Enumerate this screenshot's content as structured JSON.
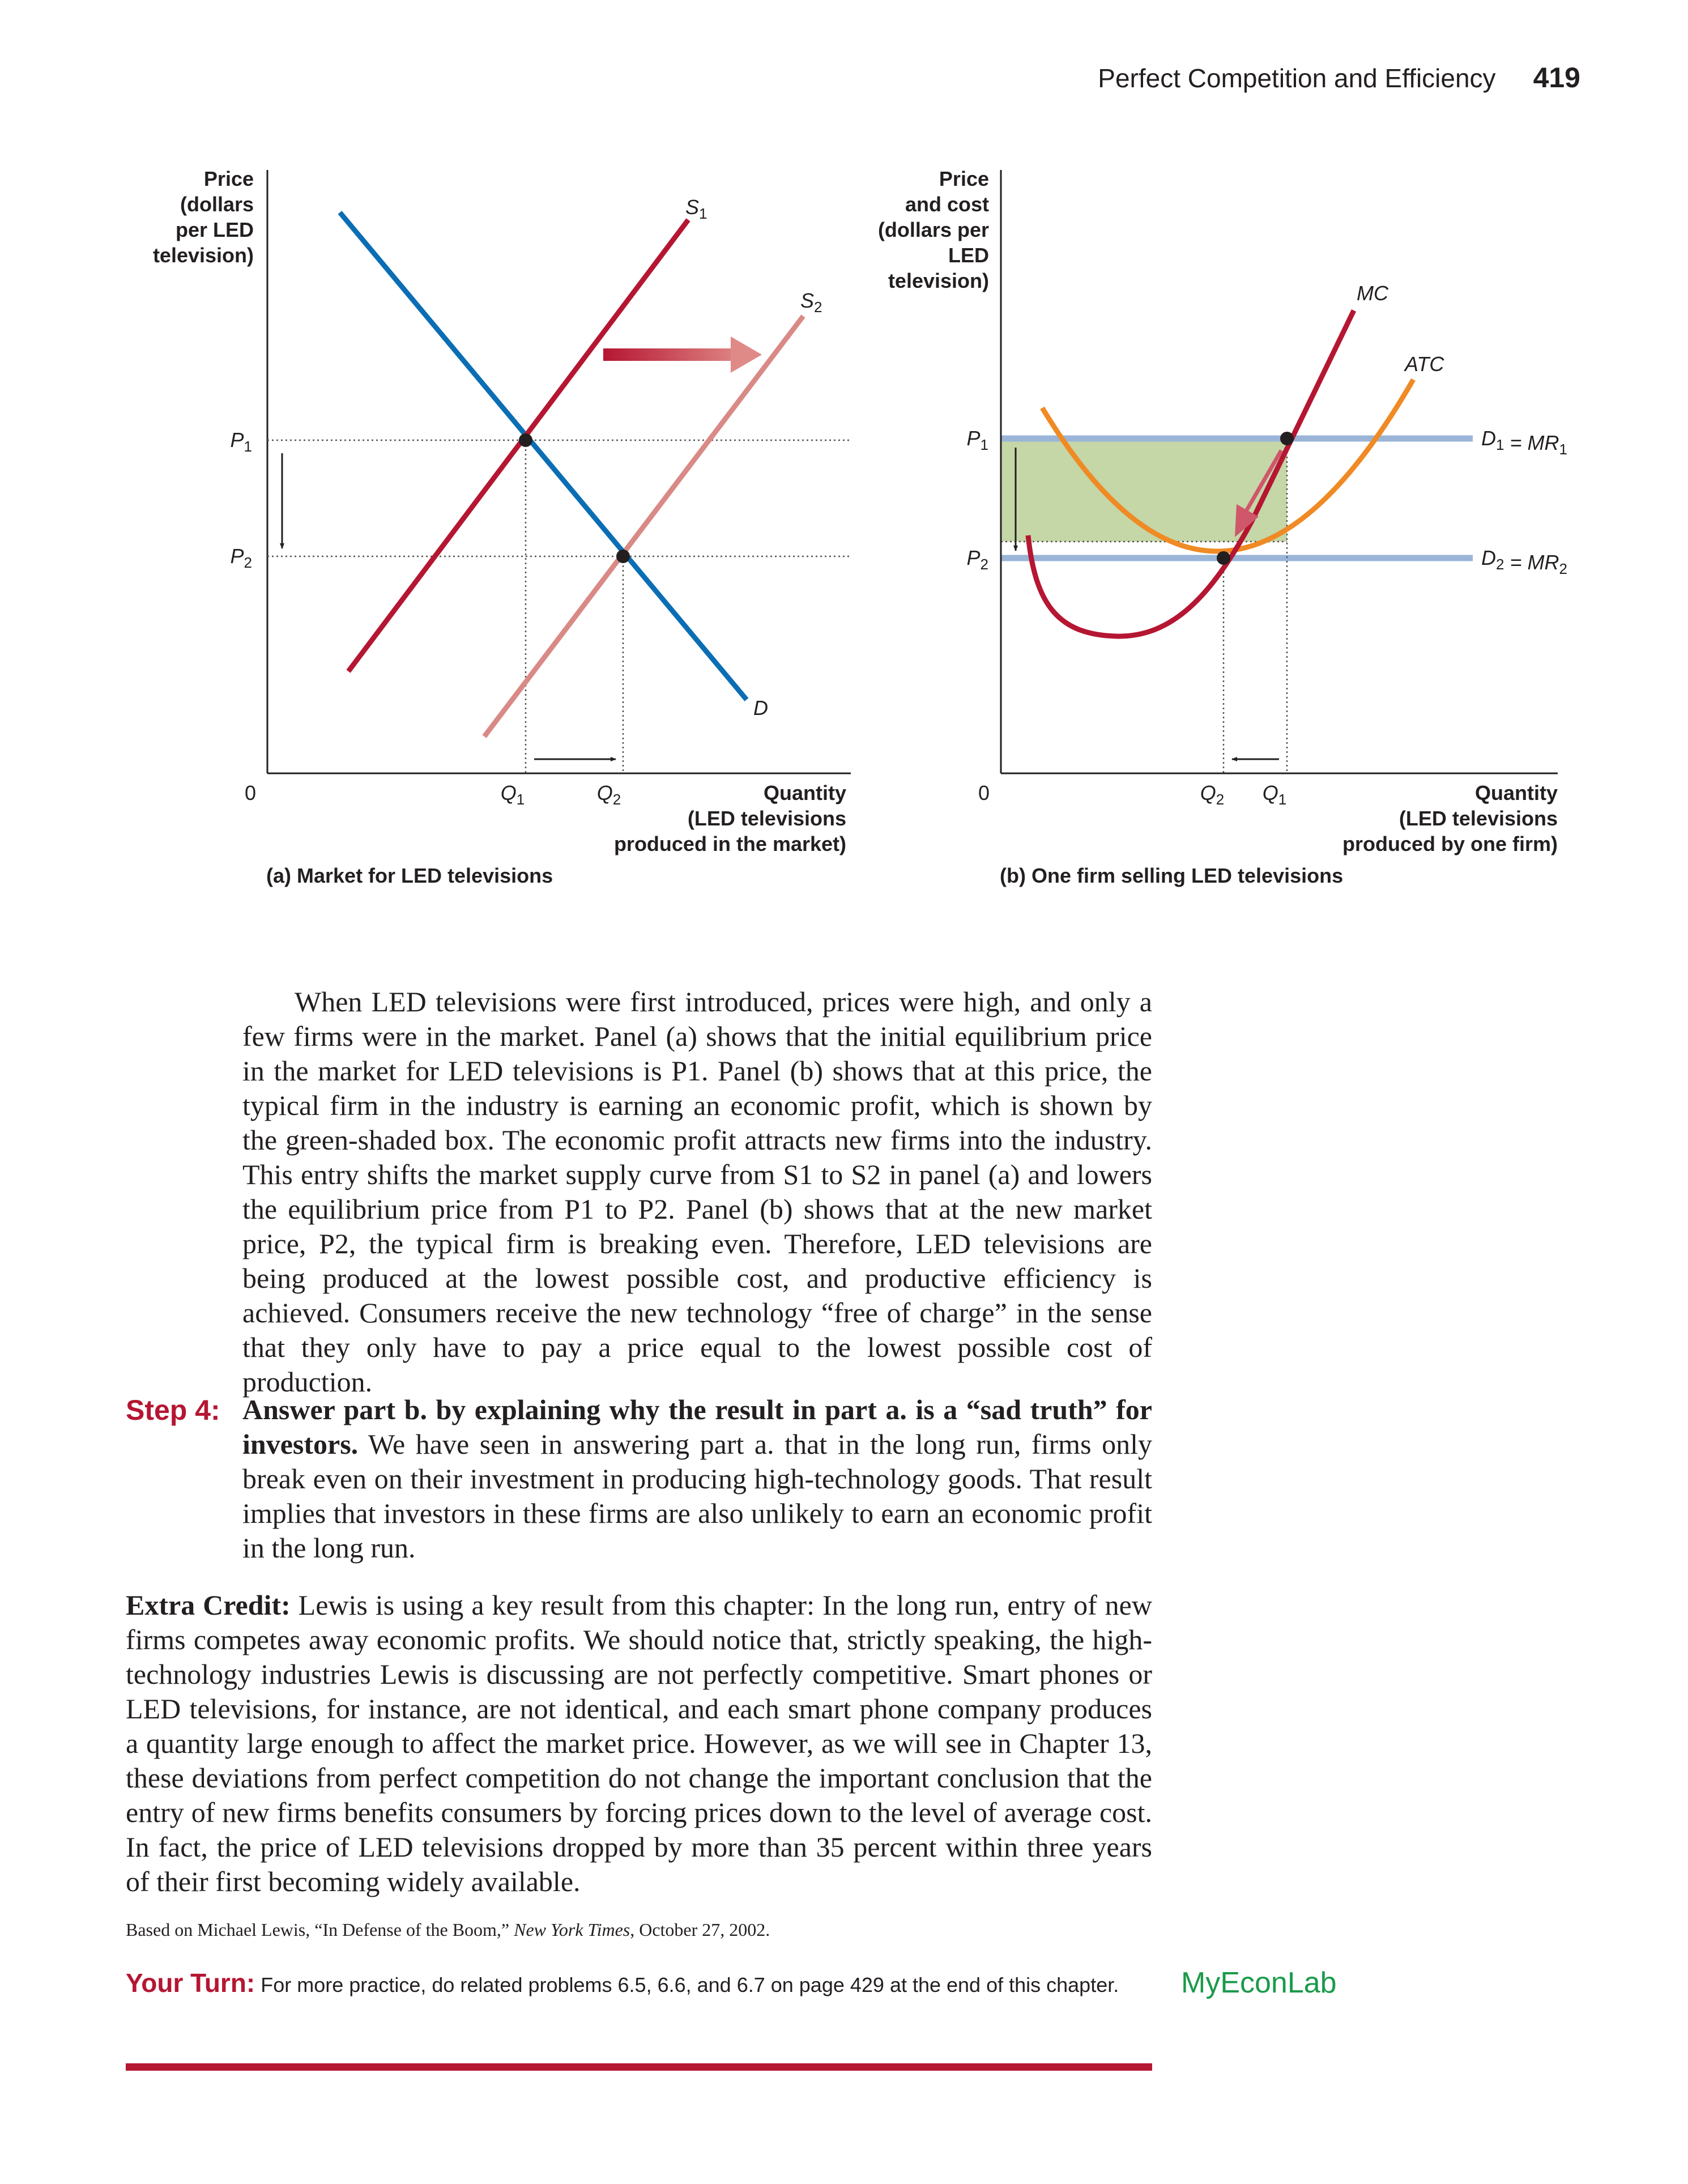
{
  "running_head": {
    "title": "Perfect Competition and Efficiency",
    "page_number": "419"
  },
  "colors": {
    "demand": "#0b6eb4",
    "supply1": "#b51632",
    "supply2": "#d98a86",
    "atc": "#f08a24",
    "demand_mr": "#9ab5d8",
    "profit": "#c5d6a7",
    "arrow": "#d0566a"
  },
  "figure": {
    "panel_a": {
      "caption": "(a) Market for LED televisions",
      "y_label": [
        "Price",
        "(dollars",
        "per LED",
        "television)"
      ],
      "x_label": [
        "Quantity",
        "(LED televisions",
        "produced in the market)"
      ],
      "origin": "0",
      "p1": "P1",
      "p2": "P2",
      "q1": "Q1",
      "q2": "Q2",
      "s1": "S1",
      "s2": "S2",
      "d": "D"
    },
    "panel_b": {
      "caption": "(b) One firm selling LED televisions",
      "y_label": [
        "Price",
        "and cost",
        "(dollars per",
        "LED",
        "television)"
      ],
      "x_label": [
        "Quantity",
        "(LED televisions",
        "produced by one firm)"
      ],
      "origin": "0",
      "p1": "P1",
      "p2": "P2",
      "q1": "Q1",
      "q2": "Q2",
      "mc": "MC",
      "atc": "ATC",
      "d1_mr1": "D1 = MR1",
      "d2_mr2": "D2 = MR2"
    }
  },
  "body": {
    "paragraph1": "When LED televisions were first introduced, prices were high, and only a few firms were in the market. Panel (a) shows that the initial equilibrium price in the market for LED televisions is P1. Panel (b) shows that at this price, the typical firm in the industry is earning an economic profit, which is shown by the green-shaded box. The economic profit attracts new firms into the industry. This entry shifts the market supply curve from S1 to S2 in panel (a) and lowers the equilibrium price from P1 to P2. Panel (b) shows that at the new market price, P2, the typical firm is breaking even. Therefore, LED televisions are being produced at the lowest possible cost, and productive efficiency is achieved. Consumers receive the new technology “free of charge” in the sense that they only have to pay a price equal to the lowest possible cost of production.",
    "step4_label": "Step 4:",
    "step4_bold": "Answer part b. by explaining why the result in part a. is a “sad truth” for investors.",
    "step4_text": "We have seen in answering part a. that in the long run, firms only break even on their investment in producing high-technology goods. That result implies that investors in these firms are also unlikely to earn an economic profit in the long run.",
    "extra_label": "Extra Credit:",
    "extra_text": "Lewis is using a key result from this chapter: In the long run, entry of new firms competes away economic profits. We should notice that, strictly speaking, the high-technology industries Lewis is discussing are not perfectly competitive. Smart phones or LED televisions, for instance, are not identical, and each smart phone company produces a quantity large enough to affect the market price. However, as we will see in Chapter 13, these deviations from perfect competition do not change the important conclusion that the entry of new firms benefits consumers by forcing prices down to the level of average cost. In fact, the price of LED televisions dropped by more than 35 percent within three years of their first becoming widely available.",
    "source_prefix": "Based on Michael Lewis, “In Defense of the Boom,”",
    "source_title": "New York Times",
    "source_suffix": ", October 27, 2002.",
    "yourturn_label": "Your Turn:",
    "yourturn_text": "For more practice, do related problems 6.5, 6.6, and 6.7 on page 429 at the end of this chapter.",
    "myecon_1": "MyEcon",
    "myecon_2": "Lab"
  }
}
